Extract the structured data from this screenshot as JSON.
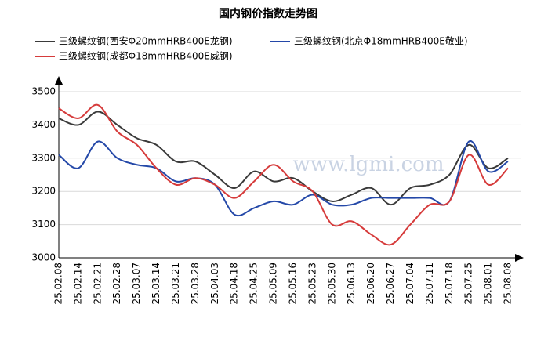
{
  "chart_data": {
    "type": "line",
    "title": "国内钢价指数走势图",
    "watermark": "www.lgmi.com",
    "categories": [
      "25.02.08",
      "25.02.14",
      "25.02.21",
      "25.02.28",
      "25.03.07",
      "25.03.14",
      "25.03.21",
      "25.03.28",
      "25.04.03",
      "25.04.18",
      "25.04.25",
      "25.05.09",
      "25.05.16",
      "25.05.23",
      "25.05.30",
      "25.06.13",
      "25.06.20",
      "25.06.27",
      "25.07.04",
      "25.07.11",
      "25.07.18",
      "25.07.25",
      "25.08.01",
      "25.08.08"
    ],
    "series": [
      {
        "name": "三级螺纹钢(西安Φ20mmHRB400E龙钢)",
        "color": "#3a3a3a",
        "values": [
          3420,
          3400,
          3440,
          3400,
          3360,
          3340,
          3290,
          3290,
          3250,
          3210,
          3260,
          3230,
          3240,
          3200,
          3170,
          3190,
          3210,
          3160,
          3210,
          3220,
          3250,
          3340,
          3270,
          3300
        ]
      },
      {
        "name": "三级螺纹钢(北京Φ18mmHRB400E敬业)",
        "color": "#2448a8",
        "values": [
          3310,
          3270,
          3350,
          3300,
          3280,
          3270,
          3230,
          3240,
          3220,
          3130,
          3150,
          3170,
          3160,
          3190,
          3160,
          3160,
          3180,
          3180,
          3180,
          3180,
          3170,
          3350,
          3260,
          3290
        ]
      },
      {
        "name": "三级螺纹钢(成都Φ18mmHRB400E威钢)",
        "color": "#d63b3b",
        "values": [
          3450,
          3420,
          3460,
          3380,
          3340,
          3270,
          3220,
          3240,
          3220,
          3180,
          3230,
          3280,
          3230,
          3200,
          3100,
          3110,
          3070,
          3040,
          3100,
          3160,
          3170,
          3310,
          3220,
          3270
        ]
      }
    ],
    "ylim": [
      3000,
      3500
    ],
    "yticks": [
      3000,
      3100,
      3200,
      3300,
      3400,
      3500
    ],
    "grid": true
  }
}
